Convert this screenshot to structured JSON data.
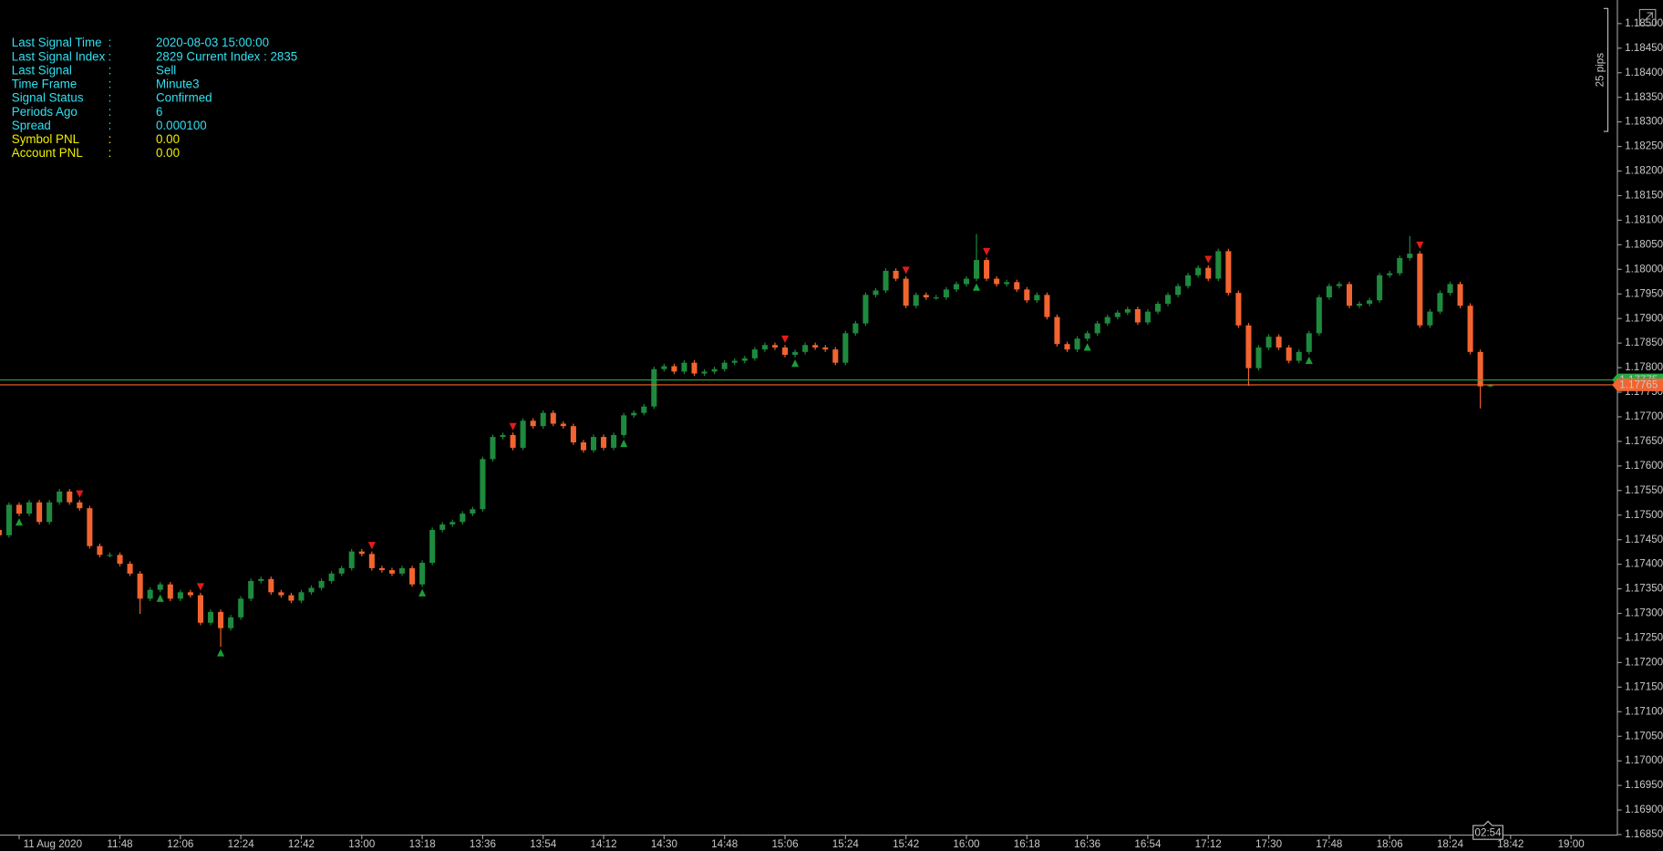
{
  "chart_data": {
    "type": "candlestick",
    "open": [
      1.1747,
      1.17459,
      1.17521,
      1.17503,
      1.17526,
      1.17486,
      1.17526,
      1.17548,
      1.17526,
      1.17514,
      1.17437,
      1.17419,
      1.17419,
      1.17401,
      1.17381,
      1.1733,
      1.17348,
      1.17359,
      1.1733,
      1.17343,
      1.17337,
      1.17281,
      1.17303,
      1.1727,
      1.17292,
      1.1733,
      1.17366,
      1.1737,
      1.17343,
      1.17337,
      1.17326,
      1.17343,
      1.17352,
      1.17366,
      1.17381,
      1.17392,
      1.17426,
      1.17421,
      1.17392,
      1.17388,
      1.17381,
      1.17392,
      1.17359,
      1.17403,
      1.1747,
      1.17481,
      1.17486,
      1.17503,
      1.17512,
      1.17614,
      1.17659,
      1.17663,
      1.17637,
      1.17692,
      1.17681,
      1.17708,
      1.17686,
      1.17681,
      1.17648,
      1.17632,
      1.17659,
      1.17637,
      1.17663,
      1.17703,
      1.17708,
      1.17721,
      1.17797,
      1.17803,
      1.17792,
      1.1781,
      1.17788,
      1.17792,
      1.17797,
      1.1781,
      1.17814,
      1.17819,
      1.17837,
      1.17846,
      1.17841,
      1.17826,
      1.17832,
      1.17846,
      1.17841,
      1.17837,
      1.1781,
      1.1787,
      1.1789,
      1.17948,
      1.17957,
      1.17997,
      1.17981,
      1.17926,
      1.17948,
      1.17943,
      1.17943,
      1.17959,
      1.1797,
      1.17981,
      1.18019,
      1.17981,
      1.1797,
      1.17974,
      1.17959,
      1.17937,
      1.17948,
      1.17903,
      1.17848,
      1.17837,
      1.17859,
      1.1787,
      1.1789,
      1.17903,
      1.17912,
      1.17919,
      1.17892,
      1.17914,
      1.1793,
      1.17948,
      1.17966,
      1.17988,
      1.18003,
      1.17981,
      1.18037,
      1.17952,
      1.17886,
      1.17799,
      1.17841,
      1.17863,
      1.17841,
      1.17814,
      1.17832,
      1.1787,
      1.17943,
      1.17966,
      1.1797,
      1.17926,
      1.1793,
      1.17937,
      1.17988,
      1.17992,
      1.18023,
      1.18032,
      1.17886,
      1.17914,
      1.17952,
      1.1797,
      1.17926,
      1.17832,
      1.17762
    ],
    "high": [
      1.17475,
      1.17526,
      1.17526,
      1.17531,
      1.17531,
      1.17531,
      1.17553,
      1.17553,
      1.17531,
      1.17519,
      1.17442,
      1.17424,
      1.17424,
      1.17406,
      1.17386,
      1.17353,
      1.17364,
      1.17364,
      1.17348,
      1.17348,
      1.17342,
      1.17308,
      1.17308,
      1.17297,
      1.17335,
      1.17371,
      1.17375,
      1.17375,
      1.17348,
      1.17342,
      1.17348,
      1.17357,
      1.17371,
      1.17386,
      1.17397,
      1.17431,
      1.17431,
      1.17426,
      1.17397,
      1.17393,
      1.17397,
      1.17397,
      1.17408,
      1.17475,
      1.17486,
      1.17491,
      1.17508,
      1.17517,
      1.17619,
      1.17664,
      1.17668,
      1.17668,
      1.17697,
      1.17697,
      1.17713,
      1.17713,
      1.17691,
      1.17686,
      1.17653,
      1.17664,
      1.17664,
      1.17668,
      1.17708,
      1.17713,
      1.17726,
      1.17802,
      1.17808,
      1.17808,
      1.17815,
      1.17815,
      1.17797,
      1.17802,
      1.17815,
      1.17819,
      1.17824,
      1.17842,
      1.17851,
      1.17851,
      1.17846,
      1.17837,
      1.17851,
      1.17851,
      1.17846,
      1.17842,
      1.17875,
      1.17895,
      1.17953,
      1.17962,
      1.18002,
      1.18002,
      1.17986,
      1.17953,
      1.17953,
      1.17948,
      1.17964,
      1.17975,
      1.17986,
      1.18072,
      1.18024,
      1.17986,
      1.17979,
      1.17979,
      1.17964,
      1.17953,
      1.17953,
      1.17908,
      1.17853,
      1.17864,
      1.17875,
      1.17895,
      1.17908,
      1.17917,
      1.17924,
      1.17924,
      1.17919,
      1.17935,
      1.17953,
      1.17971,
      1.17993,
      1.18008,
      1.18008,
      1.18042,
      1.18042,
      1.17957,
      1.17891,
      1.17846,
      1.17868,
      1.17868,
      1.17846,
      1.17837,
      1.17875,
      1.17948,
      1.17971,
      1.17975,
      1.17975,
      1.17935,
      1.17942,
      1.17993,
      1.17997,
      1.18028,
      1.18068,
      1.18037,
      1.17919,
      1.17957,
      1.17975,
      1.17975,
      1.17931,
      1.17837,
      1.17767
    ],
    "low": [
      1.17454,
      1.17454,
      1.17498,
      1.17498,
      1.17481,
      1.17481,
      1.17521,
      1.17521,
      1.17509,
      1.17432,
      1.17414,
      1.17414,
      1.17396,
      1.17376,
      1.17299,
      1.17325,
      1.17343,
      1.17325,
      1.17325,
      1.17332,
      1.17276,
      1.17276,
      1.17232,
      1.17265,
      1.17287,
      1.17325,
      1.17361,
      1.17338,
      1.17332,
      1.17321,
      1.17321,
      1.17338,
      1.17347,
      1.17361,
      1.17376,
      1.17387,
      1.17416,
      1.17387,
      1.17383,
      1.17376,
      1.17376,
      1.17354,
      1.17354,
      1.17398,
      1.17465,
      1.17476,
      1.17481,
      1.17498,
      1.17507,
      1.17609,
      1.17654,
      1.17632,
      1.17632,
      1.17676,
      1.17676,
      1.17681,
      1.17676,
      1.17643,
      1.17627,
      1.17627,
      1.17632,
      1.17632,
      1.17658,
      1.17698,
      1.17703,
      1.17716,
      1.17792,
      1.17787,
      1.17787,
      1.17783,
      1.17783,
      1.17787,
      1.17792,
      1.17805,
      1.17809,
      1.17814,
      1.17832,
      1.17836,
      1.17821,
      1.17821,
      1.17827,
      1.17836,
      1.17832,
      1.17805,
      1.17805,
      1.17865,
      1.17885,
      1.17943,
      1.17952,
      1.17976,
      1.17921,
      1.17921,
      1.17938,
      1.17938,
      1.17938,
      1.17954,
      1.17965,
      1.17976,
      1.17976,
      1.17965,
      1.17965,
      1.17954,
      1.17932,
      1.17932,
      1.17898,
      1.17843,
      1.17832,
      1.17832,
      1.17854,
      1.17865,
      1.17885,
      1.17898,
      1.17907,
      1.17887,
      1.17887,
      1.17909,
      1.17925,
      1.17943,
      1.17961,
      1.17983,
      1.17976,
      1.17976,
      1.17947,
      1.17881,
      1.17763,
      1.17794,
      1.17836,
      1.17836,
      1.17809,
      1.17809,
      1.17827,
      1.17865,
      1.17938,
      1.17961,
      1.17921,
      1.17921,
      1.17925,
      1.17932,
      1.17983,
      1.17987,
      1.18018,
      1.17881,
      1.17881,
      1.17909,
      1.17947,
      1.17921,
      1.17827,
      1.17717,
      1.1776
    ],
    "close": [
      1.17459,
      1.17521,
      1.17503,
      1.17526,
      1.17486,
      1.17526,
      1.17548,
      1.17526,
      1.17514,
      1.17437,
      1.17419,
      1.17419,
      1.17401,
      1.17381,
      1.1733,
      1.17348,
      1.17359,
      1.1733,
      1.17343,
      1.17337,
      1.17281,
      1.17303,
      1.1727,
      1.17292,
      1.1733,
      1.17366,
      1.1737,
      1.17343,
      1.17337,
      1.17326,
      1.17343,
      1.17352,
      1.17366,
      1.17381,
      1.17392,
      1.17426,
      1.17421,
      1.17392,
      1.17388,
      1.17381,
      1.17392,
      1.17359,
      1.17403,
      1.1747,
      1.17481,
      1.17486,
      1.17503,
      1.17512,
      1.17614,
      1.17659,
      1.17663,
      1.17637,
      1.17692,
      1.17681,
      1.17708,
      1.17686,
      1.17681,
      1.17648,
      1.17632,
      1.17659,
      1.17637,
      1.17663,
      1.17703,
      1.17708,
      1.17721,
      1.17797,
      1.17803,
      1.17792,
      1.1781,
      1.17788,
      1.17792,
      1.17797,
      1.1781,
      1.17814,
      1.17819,
      1.17837,
      1.17846,
      1.17841,
      1.17826,
      1.17832,
      1.17846,
      1.17841,
      1.17837,
      1.1781,
      1.1787,
      1.1789,
      1.17948,
      1.17957,
      1.17997,
      1.17981,
      1.17926,
      1.17948,
      1.17943,
      1.17943,
      1.17959,
      1.1797,
      1.17981,
      1.18019,
      1.17981,
      1.1797,
      1.17974,
      1.17959,
      1.17937,
      1.17948,
      1.17903,
      1.17848,
      1.17837,
      1.17859,
      1.1787,
      1.1789,
      1.17903,
      1.17912,
      1.17919,
      1.17892,
      1.17914,
      1.1793,
      1.17948,
      1.17966,
      1.17988,
      1.18003,
      1.17981,
      1.18037,
      1.17952,
      1.17886,
      1.17799,
      1.17841,
      1.17863,
      1.17841,
      1.17814,
      1.17832,
      1.1787,
      1.17943,
      1.17966,
      1.1797,
      1.17926,
      1.1793,
      1.17937,
      1.17988,
      1.17992,
      1.18023,
      1.18032,
      1.17886,
      1.17914,
      1.17952,
      1.1797,
      1.17926,
      1.17832,
      1.17762,
      1.17765
    ],
    "bull_color": "#1e8a3e",
    "bear_color": "#f26430",
    "buy_signals": [
      2,
      16,
      22,
      42,
      62,
      79,
      97,
      108,
      130
    ],
    "buy_color": "#1a9c3a",
    "sell_signals": [
      8,
      20,
      37,
      51,
      78,
      90,
      98,
      120,
      141
    ],
    "sell_color": "#e41b1b",
    "xlim": [
      0.1,
      160.6
    ],
    "xticks": [
      {
        "value": 2,
        "label": "11 Aug 2020"
      },
      {
        "value": 12,
        "label": "11:48"
      },
      {
        "value": 18,
        "label": "12:06"
      },
      {
        "value": 24,
        "label": "12:24"
      },
      {
        "value": 30,
        "label": "12:42"
      },
      {
        "value": 36,
        "label": "13:00"
      },
      {
        "value": 42,
        "label": "13:18"
      },
      {
        "value": 48,
        "label": "13:36"
      },
      {
        "value": 54,
        "label": "13:54"
      },
      {
        "value": 60,
        "label": "14:12"
      },
      {
        "value": 66,
        "label": "14:30"
      },
      {
        "value": 72,
        "label": "14:48"
      },
      {
        "value": 78,
        "label": "15:06"
      },
      {
        "value": 84,
        "label": "15:24"
      },
      {
        "value": 90,
        "label": "15:42"
      },
      {
        "value": 96,
        "label": "16:00"
      },
      {
        "value": 102,
        "label": "16:18"
      },
      {
        "value": 108,
        "label": "16:36"
      },
      {
        "value": 114,
        "label": "16:54"
      },
      {
        "value": 120,
        "label": "17:12"
      },
      {
        "value": 126,
        "label": "17:30"
      },
      {
        "value": 132,
        "label": "17:48"
      },
      {
        "value": 138,
        "label": "18:06"
      },
      {
        "value": 144,
        "label": "18:24"
      },
      {
        "value": 150,
        "label": "18:42"
      },
      {
        "value": 156,
        "label": "19:00"
      }
    ],
    "ylim": [
      1.16849,
      1.18548
    ],
    "yticks": [
      {
        "value": 1.185,
        "label": "1.18500"
      },
      {
        "value": 1.1845,
        "label": "1.18450"
      },
      {
        "value": 1.184,
        "label": "1.18400"
      },
      {
        "value": 1.1835,
        "label": "1.18350"
      },
      {
        "value": 1.183,
        "label": "1.18300"
      },
      {
        "value": 1.1825,
        "label": "1.18250"
      },
      {
        "value": 1.182,
        "label": "1.18200"
      },
      {
        "value": 1.1815,
        "label": "1.18150"
      },
      {
        "value": 1.181,
        "label": "1.18100"
      },
      {
        "value": 1.1805,
        "label": "1.18050"
      },
      {
        "value": 1.18,
        "label": "1.18000"
      },
      {
        "value": 1.1795,
        "label": "1.17950"
      },
      {
        "value": 1.179,
        "label": "1.17900"
      },
      {
        "value": 1.1785,
        "label": "1.17850"
      },
      {
        "value": 1.178,
        "label": "1.17800"
      },
      {
        "value": 1.1775,
        "label": "1.17750"
      },
      {
        "value": 1.177,
        "label": "1.17700"
      },
      {
        "value": 1.1765,
        "label": "1.17650"
      },
      {
        "value": 1.176,
        "label": "1.17600"
      },
      {
        "value": 1.1755,
        "label": "1.17550"
      },
      {
        "value": 1.175,
        "label": "1.17500"
      },
      {
        "value": 1.1745,
        "label": "1.17450"
      },
      {
        "value": 1.174,
        "label": "1.17400"
      },
      {
        "value": 1.1735,
        "label": "1.17350"
      },
      {
        "value": 1.173,
        "label": "1.17300"
      },
      {
        "value": 1.1725,
        "label": "1.17250"
      },
      {
        "value": 1.172,
        "label": "1.17200"
      },
      {
        "value": 1.1715,
        "label": "1.17150"
      },
      {
        "value": 1.171,
        "label": "1.17100"
      },
      {
        "value": 1.1705,
        "label": "1.17050"
      },
      {
        "value": 1.17,
        "label": "1.17000"
      },
      {
        "value": 1.1695,
        "label": "1.16950"
      },
      {
        "value": 1.169,
        "label": "1.16900"
      },
      {
        "value": 1.1685,
        "label": "1.16850"
      }
    ],
    "grid": false,
    "ask": {
      "value": 1.17775,
      "label": "1.17775",
      "color": "#27a843"
    },
    "bid": {
      "value": 1.17765,
      "label": "1.17765",
      "color": "#f26430"
    },
    "ruler": {
      "label": "25 pips",
      "size": 0.0025
    },
    "countdown": "02:54",
    "info": [
      {
        "label": "Last Signal Time",
        "sep": ":",
        "value": "2020-08-03 15:00:00",
        "color": "#2fe0f0"
      },
      {
        "label": "Last Signal Index",
        "sep": ":",
        "value": "2829 Current Index : 2835",
        "color": "#2fe0f0"
      },
      {
        "label": "Last Signal",
        "sep": ":",
        "value": "Sell",
        "color": "#2fe0f0"
      },
      {
        "label": "Time Frame",
        "sep": ":",
        "value": "Minute3",
        "color": "#2fe0f0"
      },
      {
        "label": "Signal Status",
        "sep": ":",
        "value": "Confirmed",
        "color": "#2fe0f0"
      },
      {
        "label": "Periods Ago",
        "sep": ":",
        "value": "6",
        "color": "#2fe0f0"
      },
      {
        "label": "Spread",
        "sep": ":",
        "value": "0.000100",
        "color": "#2fe0f0"
      },
      {
        "label": "Symbol PNL",
        "sep": ":",
        "value": "0.00",
        "color": "#f0f000"
      },
      {
        "label": "Account PNL",
        "sep": ":",
        "value": "0.00",
        "color": "#f0f000"
      }
    ]
  }
}
